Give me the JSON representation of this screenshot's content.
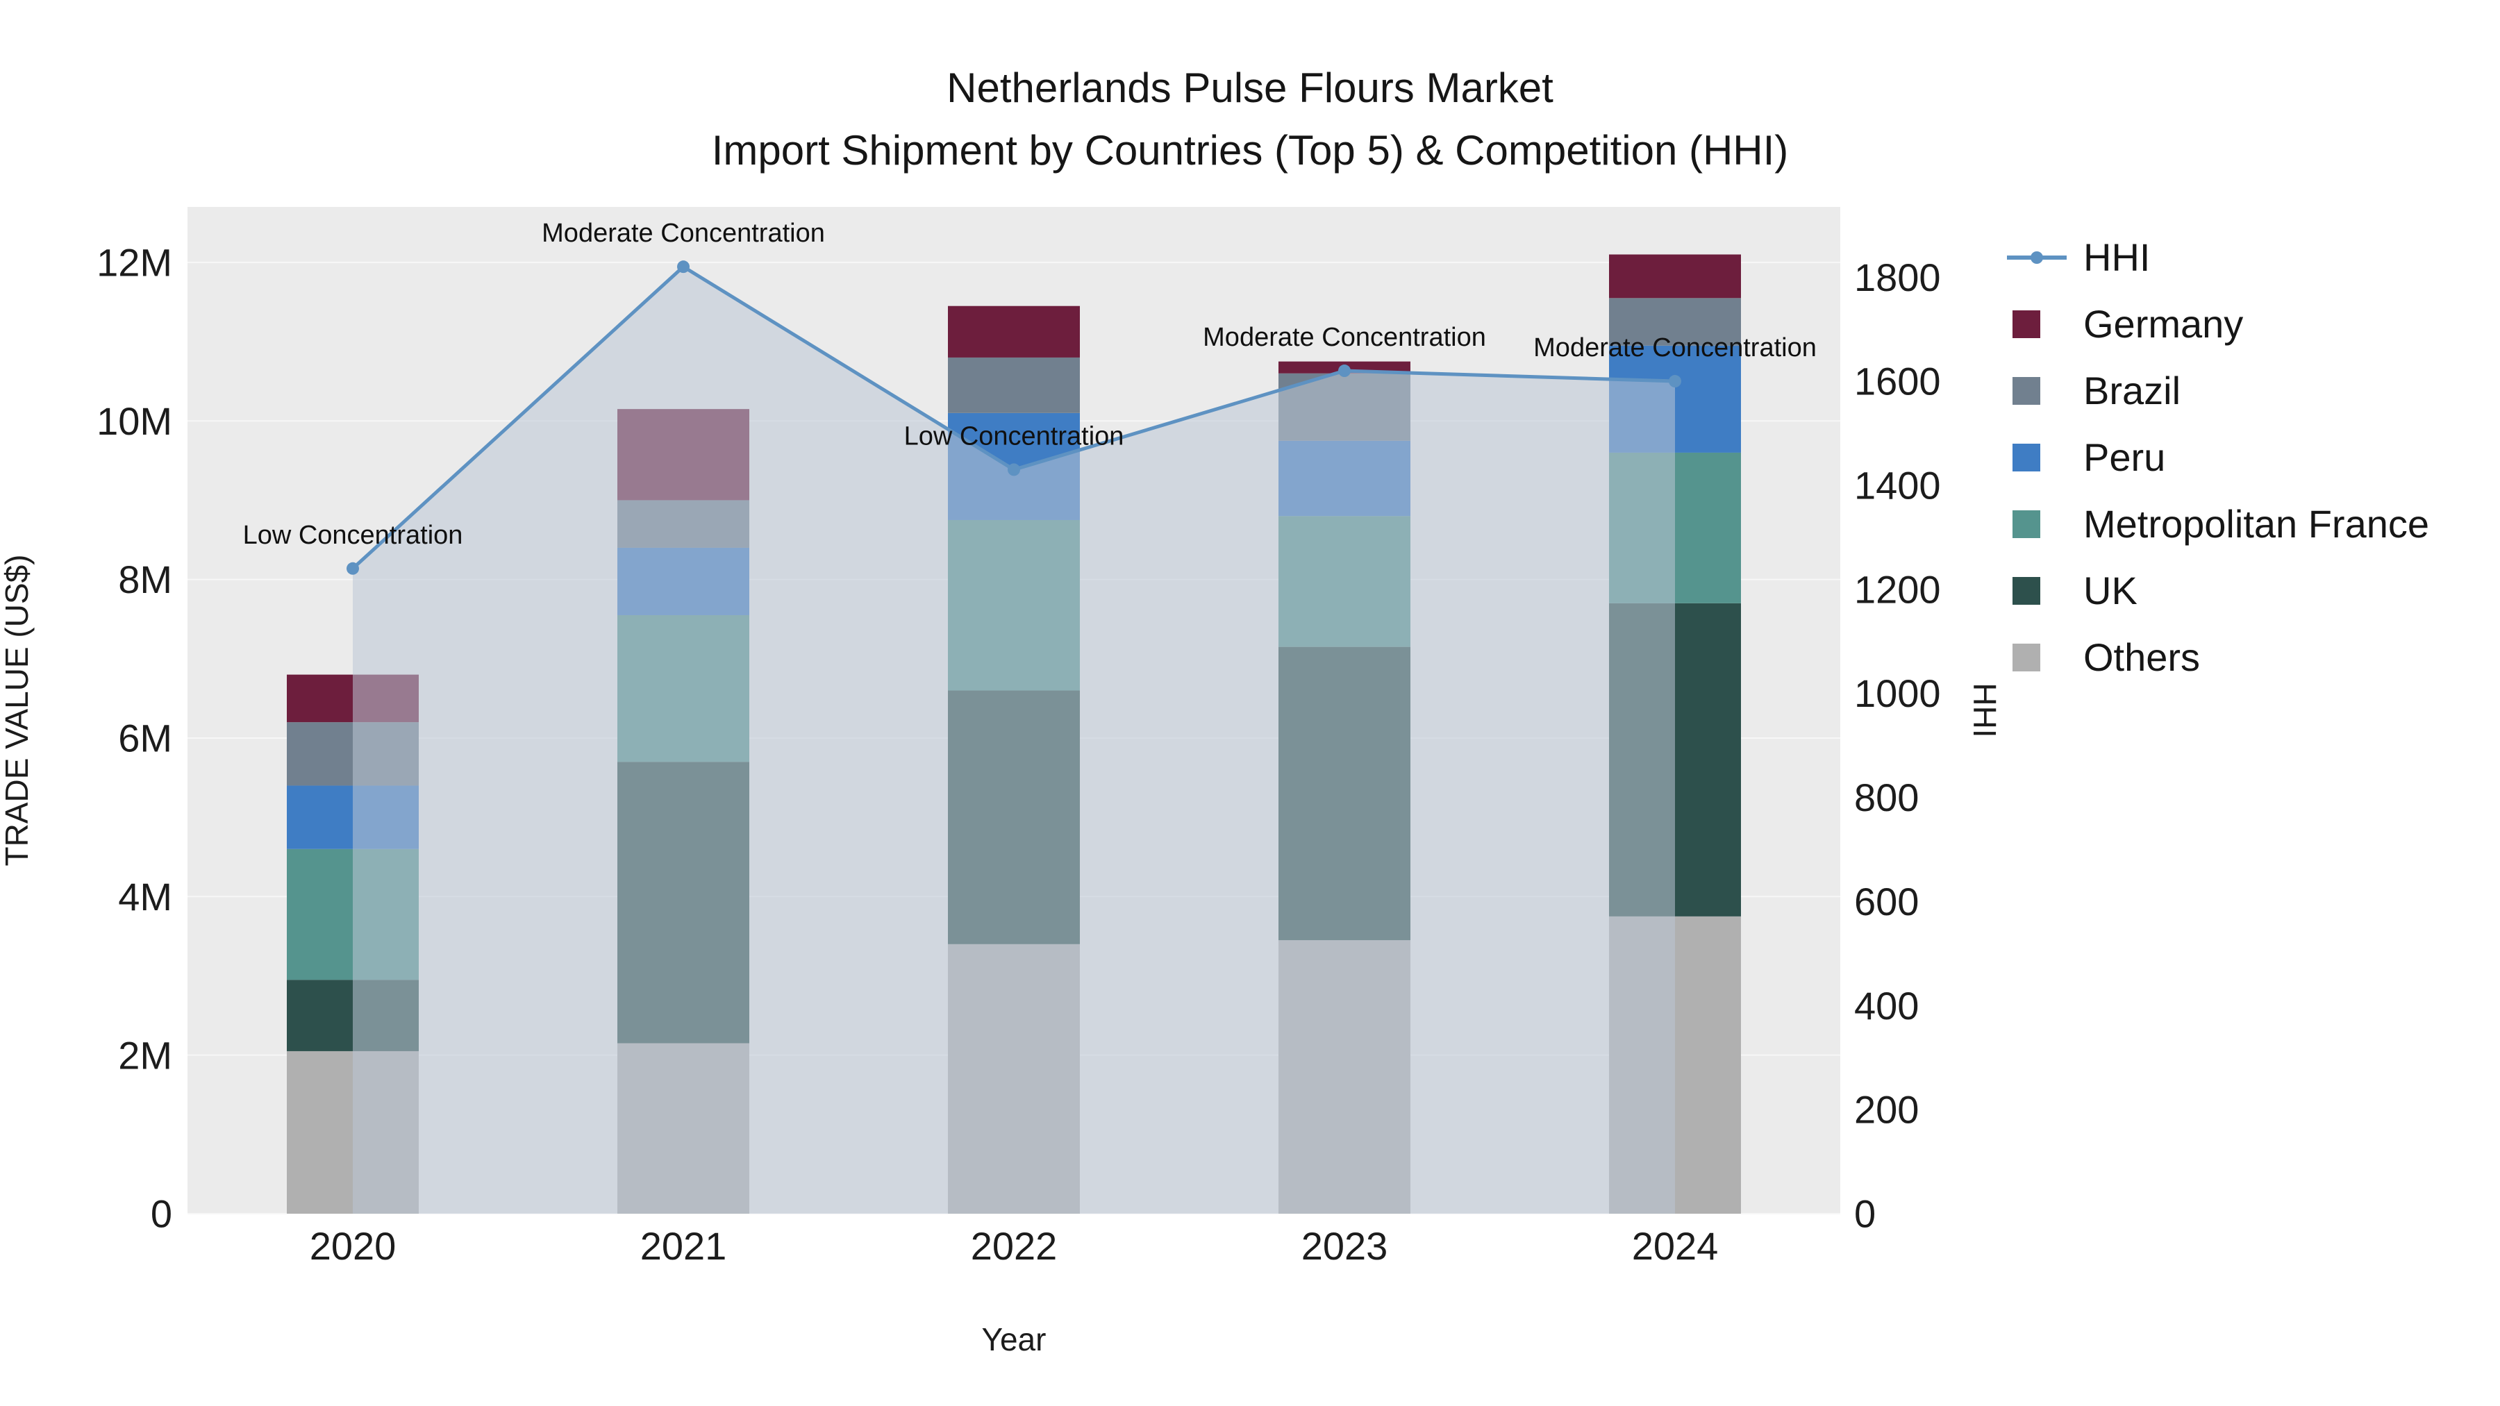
{
  "title": "Netherlands Pulse Flours Market",
  "subtitle": "Import Shipment by Countries (Top 5) & Competition (HHI)",
  "axes": {
    "x_title": "Year",
    "y_left_title": "TRADE VALUE (US$)",
    "y_right_title": "HHI",
    "y_left_ticks": {
      "values": [
        0,
        2000000,
        4000000,
        6000000,
        8000000,
        10000000,
        12000000
      ],
      "labels": [
        "0",
        "2M",
        "4M",
        "6M",
        "8M",
        "10M",
        "12M"
      ]
    },
    "y_right_ticks": {
      "values": [
        0,
        200,
        400,
        600,
        800,
        1000,
        1200,
        1400,
        1600,
        1800
      ],
      "labels": [
        "0",
        "200",
        "400",
        "600",
        "800",
        "1000",
        "1200",
        "1400",
        "1600",
        "1800"
      ]
    }
  },
  "chart_data": {
    "type": "bar",
    "stacked": true,
    "title": "Netherlands Pulse Flours Market — Import Shipment by Countries (Top 5) & Competition (HHI)",
    "xlabel": "Year",
    "ylabel_left": "TRADE VALUE (US$)",
    "ylabel_right": "HHI",
    "categories": [
      "2020",
      "2021",
      "2022",
      "2023",
      "2024"
    ],
    "y_left_range": [
      0,
      12700000
    ],
    "y_right_range": [
      0,
      1935
    ],
    "grid": true,
    "legend_position": "right",
    "series": [
      {
        "name": "Others",
        "color": "#b0b0b0",
        "values": [
          2050000,
          2150000,
          3400000,
          3450000,
          3750000
        ]
      },
      {
        "name": "UK",
        "color": "#2d504c",
        "values": [
          900000,
          3550000,
          3200000,
          3700000,
          3950000
        ]
      },
      {
        "name": "Metropolitan France",
        "color": "#55948e",
        "values": [
          1650000,
          1850000,
          2150000,
          1650000,
          1900000
        ]
      },
      {
        "name": "Peru",
        "color": "#3f7dc4",
        "values": [
          800000,
          850000,
          1350000,
          950000,
          1350000
        ]
      },
      {
        "name": "Brazil",
        "color": "#71808f",
        "values": [
          800000,
          600000,
          700000,
          850000,
          600000
        ]
      },
      {
        "name": "Germany",
        "color": "#6d1e3d",
        "values": [
          600000,
          1150000,
          650000,
          150000,
          550000
        ]
      }
    ],
    "line_series": {
      "name": "HHI",
      "axis": "right",
      "color": "#5e92c2",
      "fill_color": "rgba(188,199,214,0.55)",
      "values": [
        1240,
        1820,
        1430,
        1620,
        1600
      ]
    },
    "annotations": [
      {
        "category": "2020",
        "text": "Low Concentration"
      },
      {
        "category": "2021",
        "text": "Moderate Concentration"
      },
      {
        "category": "2022",
        "text": "Low Concentration"
      },
      {
        "category": "2023",
        "text": "Moderate Concentration"
      },
      {
        "category": "2024",
        "text": "Moderate Concentration"
      }
    ]
  },
  "legend": {
    "items": [
      {
        "label": "HHI",
        "marker": "line",
        "color": "#5e92c2"
      },
      {
        "label": "Germany",
        "marker": "square",
        "color": "#6d1e3d"
      },
      {
        "label": "Brazil",
        "marker": "square",
        "color": "#71808f"
      },
      {
        "label": "Peru",
        "marker": "square",
        "color": "#3f7dc4"
      },
      {
        "label": "Metropolitan France",
        "marker": "square",
        "color": "#55948e"
      },
      {
        "label": "UK",
        "marker": "square",
        "color": "#2d504c"
      },
      {
        "label": "Others",
        "marker": "square",
        "color": "#b0b0b0"
      }
    ]
  }
}
